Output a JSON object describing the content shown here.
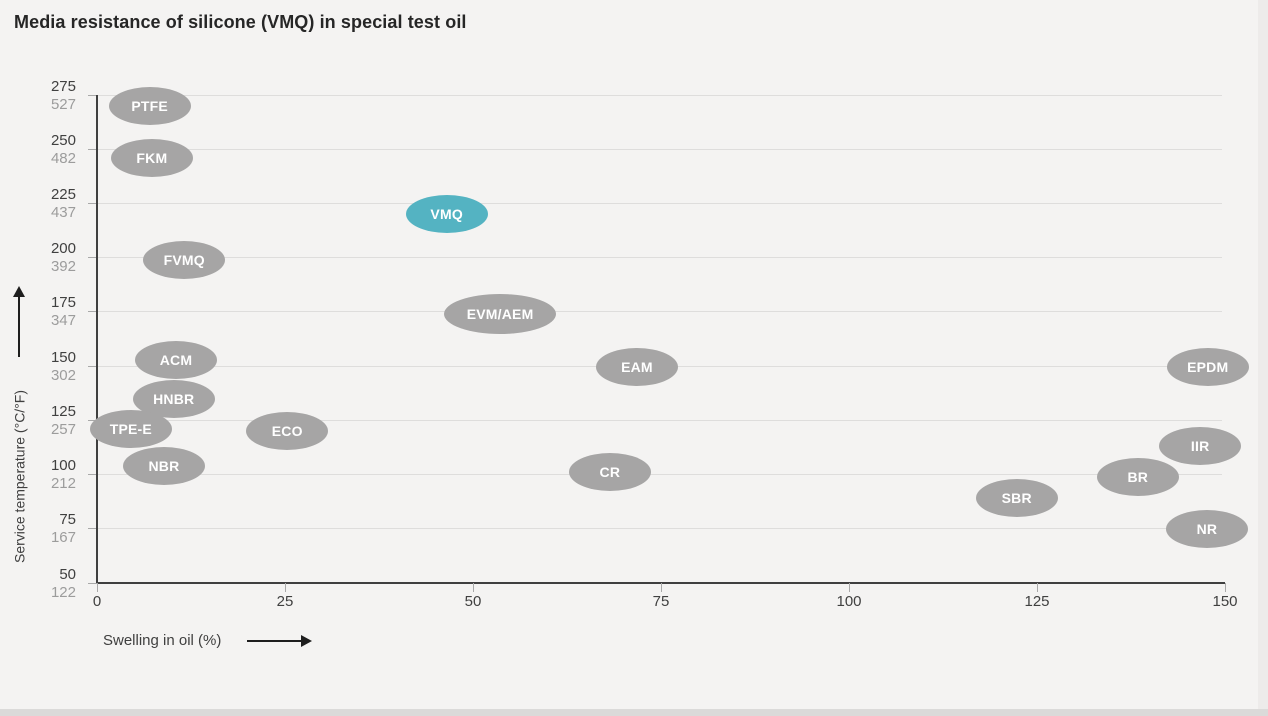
{
  "title": "Media resistance of silicone (VMQ) in special test oil",
  "colors": {
    "background": "#f4f3f2",
    "bubble_gray": "#a6a5a5",
    "bubble_highlight": "#54b3c2",
    "bubble_text": "#ffffff",
    "gridline": "#dedddc",
    "axis": "#3f3f3f",
    "tick": "#a9a9a9",
    "tick_label_celsius": "#404040",
    "tick_label_fahrenheit": "#9c9c9c"
  },
  "chart_data": {
    "type": "scatter",
    "title": "Media resistance of silicone (VMQ) in special test oil",
    "xlabel": "Swelling in oil (%)",
    "ylabel": "Service temperature (°C/°F)",
    "xlim": [
      0,
      150
    ],
    "ylim_celsius": [
      50,
      275
    ],
    "x_ticks": [
      0,
      25,
      50,
      75,
      100,
      125,
      150
    ],
    "y_ticks": [
      {
        "c": 275,
        "f": 527
      },
      {
        "c": 250,
        "f": 482
      },
      {
        "c": 225,
        "f": 437
      },
      {
        "c": 200,
        "f": 392
      },
      {
        "c": 175,
        "f": 347
      },
      {
        "c": 150,
        "f": 302
      },
      {
        "c": 125,
        "f": 257
      },
      {
        "c": 100,
        "f": 212
      },
      {
        "c": 75,
        "f": 167
      },
      {
        "c": 50,
        "f": 122
      }
    ],
    "grid": "horizontal gridlines at each 25 °C step",
    "legend": "none",
    "highlighted_series": "VMQ",
    "points": [
      {
        "label": "PTFE",
        "x": 7,
        "temp_c": 270,
        "highlight": false
      },
      {
        "label": "FKM",
        "x": 7.3,
        "temp_c": 246,
        "highlight": false
      },
      {
        "label": "VMQ",
        "x": 46.5,
        "temp_c": 220,
        "highlight": true
      },
      {
        "label": "FVMQ",
        "x": 11.6,
        "temp_c": 199,
        "highlight": false
      },
      {
        "label": "EVM/AEM",
        "x": 53.6,
        "temp_c": 174,
        "highlight": false,
        "w": 112,
        "h": 40
      },
      {
        "label": "ACM",
        "x": 10.5,
        "temp_c": 153,
        "highlight": false
      },
      {
        "label": "EAM",
        "x": 71.8,
        "temp_c": 149.5,
        "highlight": false
      },
      {
        "label": "EPDM",
        "x": 147.7,
        "temp_c": 149.5,
        "highlight": false
      },
      {
        "label": "HNBR",
        "x": 10.2,
        "temp_c": 135,
        "highlight": false
      },
      {
        "label": "TPE-E",
        "x": 4.5,
        "temp_c": 121,
        "highlight": false
      },
      {
        "label": "ECO",
        "x": 25.3,
        "temp_c": 120,
        "highlight": false
      },
      {
        "label": "IIR",
        "x": 146.7,
        "temp_c": 113,
        "highlight": false
      },
      {
        "label": "NBR",
        "x": 8.9,
        "temp_c": 104,
        "highlight": false
      },
      {
        "label": "CR",
        "x": 68.2,
        "temp_c": 101,
        "highlight": false
      },
      {
        "label": "BR",
        "x": 138.4,
        "temp_c": 99,
        "highlight": false
      },
      {
        "label": "SBR",
        "x": 122.3,
        "temp_c": 89,
        "highlight": false
      },
      {
        "label": "NR",
        "x": 147.6,
        "temp_c": 75,
        "highlight": false
      }
    ]
  }
}
